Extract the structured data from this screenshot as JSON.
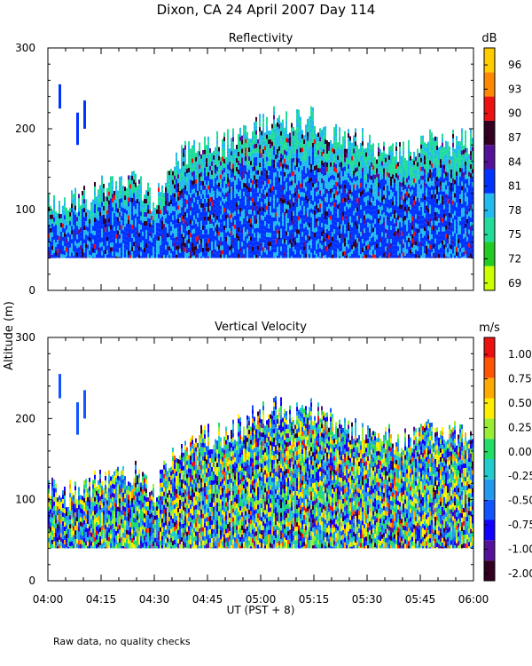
{
  "figure": {
    "title": "Dixon, CA 24 April 2007  Day 114",
    "ylabel": "Altitude (m)",
    "xlabel": "UT  (PST + 8)",
    "footnote": "Raw data, no quality checks"
  },
  "colors": {
    "reflectivity_scale": [
      "#ccff00",
      "#22cc22",
      "#22dd99",
      "#22bbee",
      "#0033ff",
      "#551199",
      "#330022",
      "#ee1111",
      "#ff8800",
      "#ffcc00"
    ],
    "velocity_scale": [
      "#330022",
      "#551199",
      "#1100ff",
      "#1155ff",
      "#2299ee",
      "#22cccc",
      "#22dd66",
      "#99ee33",
      "#ffee00",
      "#ffaa00",
      "#ff5500",
      "#ee1111"
    ]
  },
  "chart_data": [
    {
      "type": "heatmap",
      "title": "Reflectivity",
      "xlabel": "UT  (PST + 8)",
      "ylabel": "Altitude (m)",
      "x_ticks": [
        "04:00",
        "04:15",
        "04:30",
        "04:45",
        "05:00",
        "05:15",
        "05:30",
        "05:45",
        "06:00"
      ],
      "x_range": [
        "04:00",
        "06:00"
      ],
      "y_ticks": [
        0,
        100,
        200,
        300
      ],
      "ylim": [
        0,
        300
      ],
      "colorbar": {
        "unit": "dB",
        "tick_labels": [
          "96",
          "93",
          "90",
          "87",
          "84",
          "81",
          "78",
          "75",
          "72",
          "69"
        ],
        "range": [
          69,
          99
        ]
      },
      "echo_top_profile_m": {
        "time": [
          "04:00",
          "04:05",
          "04:10",
          "04:15",
          "04:20",
          "04:25",
          "04:30",
          "04:35",
          "04:40",
          "04:45",
          "04:50",
          "04:55",
          "05:00",
          "05:05",
          "05:10",
          "05:15",
          "05:20",
          "05:25",
          "05:30",
          "05:35",
          "05:40",
          "05:45",
          "05:50",
          "05:55",
          "06:00"
        ],
        "altitude": [
          110,
          100,
          105,
          120,
          125,
          130,
          100,
          150,
          165,
          170,
          175,
          185,
          200,
          205,
          200,
          205,
          190,
          180,
          175,
          170,
          165,
          175,
          180,
          175,
          180
        ]
      },
      "echo_base_m": 40,
      "isolated_echoes": [
        {
          "time": "04:03",
          "altitude_range": [
            225,
            255
          ]
        },
        {
          "time": "04:08",
          "altitude_range": [
            180,
            220
          ]
        },
        {
          "time": "04:10",
          "altitude_range": [
            200,
            235
          ]
        }
      ]
    },
    {
      "type": "heatmap",
      "title": "Vertical Velocity",
      "xlabel": "UT  (PST + 8)",
      "ylabel": "Altitude (m)",
      "x_ticks": [
        "04:00",
        "04:15",
        "04:30",
        "04:45",
        "05:00",
        "05:15",
        "05:30",
        "05:45",
        "06:00"
      ],
      "x_range": [
        "04:00",
        "06:00"
      ],
      "y_ticks": [
        0,
        100,
        200,
        300
      ],
      "ylim": [
        0,
        300
      ],
      "colorbar": {
        "unit": "m/s",
        "tick_labels": [
          "1.00",
          "0.75",
          "0.50",
          "0.25",
          "0.00",
          "-0.25",
          "-0.50",
          "-0.75",
          "-1.00",
          "-2.00"
        ],
        "range": [
          -2.0,
          1.25
        ]
      },
      "echo_top_profile_m": {
        "time": [
          "04:00",
          "04:05",
          "04:10",
          "04:15",
          "04:20",
          "04:25",
          "04:30",
          "04:35",
          "04:40",
          "04:45",
          "04:50",
          "04:55",
          "05:00",
          "05:05",
          "05:10",
          "05:15",
          "05:20",
          "05:25",
          "05:30",
          "05:35",
          "05:40",
          "05:45",
          "05:50",
          "05:55",
          "06:00"
        ],
        "altitude": [
          110,
          100,
          105,
          120,
          125,
          130,
          100,
          150,
          165,
          170,
          175,
          185,
          200,
          205,
          200,
          205,
          190,
          180,
          175,
          170,
          165,
          175,
          180,
          175,
          180
        ]
      },
      "echo_base_m": 40,
      "isolated_echoes": [
        {
          "time": "04:03",
          "altitude_range": [
            225,
            255
          ]
        },
        {
          "time": "04:08",
          "altitude_range": [
            180,
            220
          ]
        },
        {
          "time": "04:10",
          "altitude_range": [
            200,
            235
          ]
        }
      ]
    }
  ]
}
